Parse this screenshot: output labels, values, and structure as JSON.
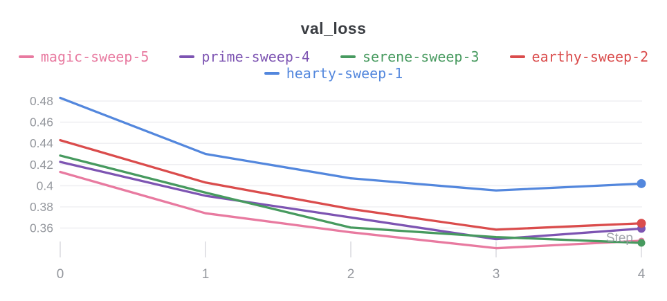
{
  "chart_data": {
    "type": "line",
    "title": "val_loss",
    "xlabel": "Step",
    "x": [
      0,
      1,
      2,
      3,
      4
    ],
    "series": [
      {
        "name": "magic-sweep-5",
        "color": "#E87AA0",
        "values": [
          0.413,
          0.374,
          0.356,
          0.341,
          0.348
        ],
        "end_dot_radius": 4.5
      },
      {
        "name": "prime-sweep-4",
        "color": "#7D54B2",
        "values": [
          0.4225,
          0.3905,
          0.37,
          0.3495,
          0.3595
        ],
        "end_dot_radius": 6
      },
      {
        "name": "serene-sweep-3",
        "color": "#479A5F",
        "values": [
          0.4285,
          0.3935,
          0.3605,
          0.3515,
          0.346
        ],
        "end_dot_radius": 5.5
      },
      {
        "name": "earthy-sweep-2",
        "color": "#DA4C4C",
        "values": [
          0.443,
          0.403,
          0.378,
          0.3585,
          0.3645
        ],
        "end_dot_radius": 6.5
      },
      {
        "name": "hearty-sweep-1",
        "color": "#5387DD",
        "values": [
          0.483,
          0.43,
          0.407,
          0.3955,
          0.402
        ],
        "end_dot_radius": 6.5
      }
    ],
    "legend_rows": [
      [
        "magic-sweep-5",
        "prime-sweep-4",
        "serene-sweep-3",
        "earthy-sweep-2"
      ],
      [
        "hearty-sweep-1"
      ]
    ],
    "legend_position": "top",
    "grid": "horizontal",
    "ylim": [
      0.36,
      0.48
    ],
    "yticks": [
      {
        "value": 0.48,
        "label": "0.48"
      },
      {
        "value": 0.46,
        "label": "0.46"
      },
      {
        "value": 0.44,
        "label": "0.44"
      },
      {
        "value": 0.42,
        "label": "0.42"
      },
      {
        "value": 0.4,
        "label": "0.4"
      },
      {
        "value": 0.38,
        "label": "0.38"
      },
      {
        "value": 0.36,
        "label": "0.36"
      }
    ],
    "xticks": [
      {
        "value": 0,
        "label": "0"
      },
      {
        "value": 1,
        "label": "1"
      },
      {
        "value": 2,
        "label": "2"
      },
      {
        "value": 3,
        "label": "3"
      },
      {
        "value": 4,
        "label": "4"
      }
    ]
  },
  "colors": {
    "title": "#3A3D42",
    "axis_label": "#95989E",
    "xaxis_label": "#979CA3",
    "gridline": "#EFEFF2",
    "tick": "#E3E3E7",
    "background": "#FFFFFF"
  }
}
